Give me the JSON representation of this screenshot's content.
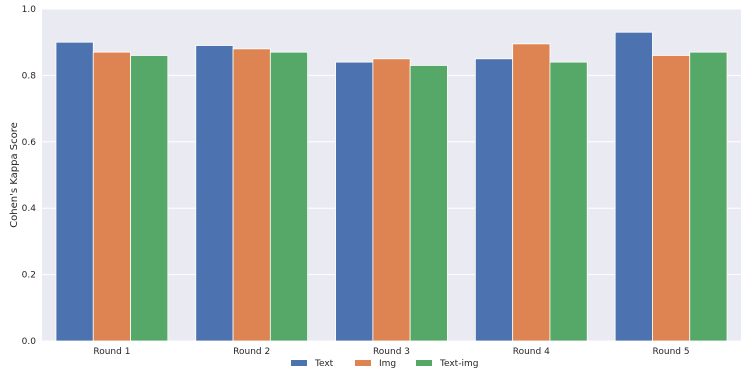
{
  "chart_data": {
    "type": "bar",
    "title": "",
    "xlabel": "",
    "ylabel": "Cohen's Kappa Score",
    "categories": [
      "Round 1",
      "Round 2",
      "Round 3",
      "Round 4",
      "Round 5"
    ],
    "series": [
      {
        "name": "Text",
        "color": "#4c72b0",
        "values": [
          0.9,
          0.89,
          0.84,
          0.85,
          0.93
        ]
      },
      {
        "name": "Img",
        "color": "#dd8452",
        "values": [
          0.87,
          0.88,
          0.85,
          0.895,
          0.86
        ]
      },
      {
        "name": "Text-img",
        "color": "#55a868",
        "values": [
          0.86,
          0.87,
          0.83,
          0.84,
          0.87
        ]
      }
    ],
    "ylim": [
      0,
      1.0
    ],
    "yticks": [
      "0.0",
      "0.2",
      "0.4",
      "0.6",
      "0.8",
      "1.0"
    ],
    "grid": true,
    "legend_position": "bottom-center",
    "background_color": "#eaeaf2"
  }
}
